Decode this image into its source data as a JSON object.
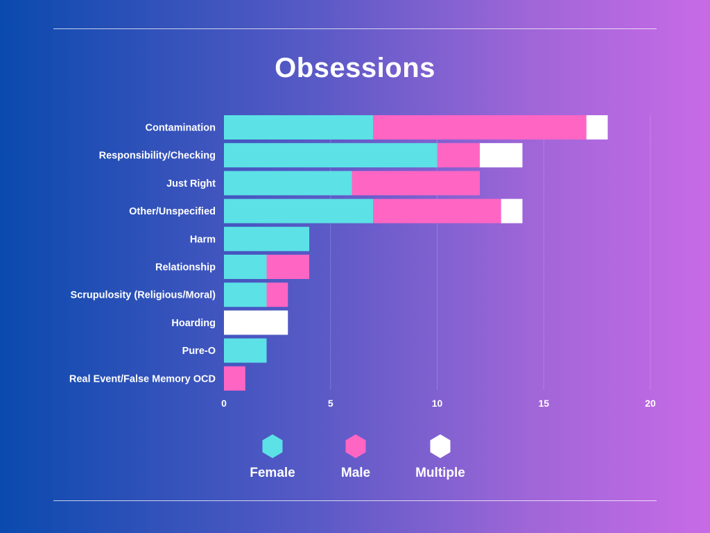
{
  "chart_data": {
    "type": "bar",
    "orientation": "horizontal",
    "stacked": true,
    "title": "Obsessions",
    "categories": [
      "Contamination",
      "Responsibility/Checking",
      "Just Right",
      "Other/Unspecified",
      "Harm",
      "Relationship",
      "Scrupulosity (Religious/Moral)",
      "Hoarding",
      "Pure-O",
      "Real Event/False Memory OCD"
    ],
    "series": [
      {
        "name": "Female",
        "color": "#5ce1e6",
        "values": [
          7,
          10,
          6,
          7,
          4,
          2,
          2,
          0,
          2,
          0
        ]
      },
      {
        "name": "Male",
        "color": "#ff66c4",
        "values": [
          10,
          2,
          6,
          6,
          0,
          2,
          1,
          0,
          0,
          1
        ]
      },
      {
        "name": "Multiple",
        "color": "#ffffff",
        "values": [
          1,
          2,
          0,
          1,
          0,
          0,
          0,
          3,
          0,
          0
        ]
      }
    ],
    "xlim": [
      0,
      20
    ],
    "xticks": [
      0,
      5,
      10,
      15,
      20
    ],
    "grid": true,
    "legend_position": "bottom"
  }
}
